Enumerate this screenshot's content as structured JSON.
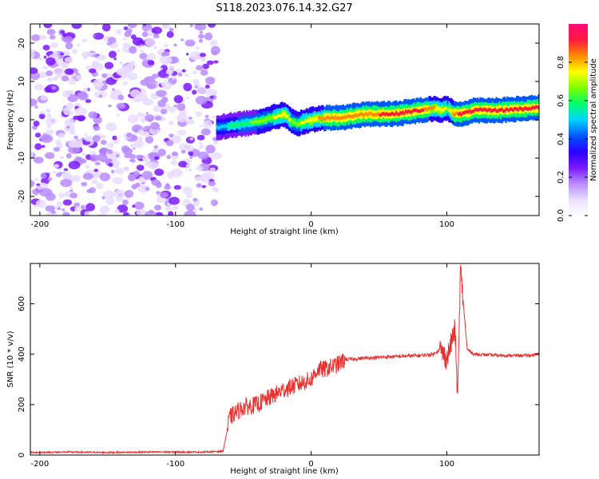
{
  "figure": {
    "title": "S118.2023.076.14.32.G27"
  },
  "colors": {
    "snr_line": "#e8312f",
    "spectrogram_palette": [
      "#ffffff",
      "#e9dcff",
      "#b98cff",
      "#7a18ff",
      "#2a00ff",
      "#0057ff",
      "#00d4ff",
      "#00ff6a",
      "#7dff00",
      "#ffff00",
      "#ff8a00",
      "#ff1a3c",
      "#ff0a78"
    ]
  },
  "chart_data": [
    {
      "type": "heatmap",
      "title": "S118.2023.076.14.32.G27",
      "xlabel": "Height of straight line (km)",
      "ylabel": "Frequency (Hz)",
      "xlim": [
        -207,
        168
      ],
      "ylim": [
        -25,
        25
      ],
      "x_ticks": [
        -200,
        -100,
        0,
        100
      ],
      "x_tick_labels": [
        "-200",
        "-100",
        "0",
        "100"
      ],
      "y_ticks": [
        -20,
        -10,
        0,
        10,
        20
      ],
      "y_tick_labels": [
        "-20",
        "-10",
        "0",
        "10",
        "20"
      ],
      "grid": false,
      "colorbar": {
        "label": "Normalized spectral amplitude",
        "range": [
          0,
          1
        ],
        "ticks": [
          0.0,
          0.2,
          0.4,
          0.6,
          0.8
        ],
        "tick_labels": [
          "0.0",
          "0.2",
          "0.4",
          "0.6",
          "0.8"
        ]
      },
      "noise_region": {
        "x_range": [
          -207,
          -70
        ],
        "amplitude": "0.1-0.3"
      },
      "signal_track": {
        "x": [
          -70,
          -60,
          -50,
          -40,
          -30,
          -20,
          -15,
          -10,
          0,
          10,
          20,
          40,
          60,
          70,
          80,
          90,
          95,
          100,
          105,
          110,
          120,
          140,
          160,
          168
        ],
        "frequency": [
          -2,
          -1.5,
          -1,
          -0.5,
          0.5,
          1.5,
          -0.5,
          -1,
          0,
          0.5,
          0.5,
          1.5,
          1.5,
          2,
          2.5,
          3,
          2.5,
          3,
          1.5,
          1.5,
          2.5,
          2.5,
          3,
          3.2
        ],
        "amplitude": [
          0.5,
          0.55,
          0.6,
          0.65,
          0.7,
          0.75,
          0.7,
          0.7,
          0.75,
          0.85,
          0.85,
          0.85,
          0.9,
          0.9,
          0.9,
          0.8,
          0.75,
          0.7,
          0.85,
          0.9,
          0.9,
          0.9,
          0.9,
          0.9
        ]
      }
    },
    {
      "type": "line",
      "xlabel": "Height of straight line (km)",
      "ylabel": "SNR (10 * v/v)",
      "xlim": [
        -207,
        168
      ],
      "ylim": [
        0,
        760
      ],
      "x_ticks": [
        -200,
        -100,
        0,
        100
      ],
      "x_tick_labels": [
        "-200",
        "-100",
        "0",
        "100"
      ],
      "y_ticks": [
        0,
        200,
        400,
        600
      ],
      "y_tick_labels": [
        "0",
        "200",
        "400",
        "600"
      ],
      "grid": false,
      "series": [
        {
          "x": [
            -207,
            -180,
            -150,
            -120,
            -100,
            -80,
            -65,
            -60,
            -55,
            -50,
            -40,
            -30,
            -20,
            -10,
            0,
            5,
            10,
            15,
            20,
            25,
            30,
            40,
            60,
            80,
            90,
            95,
            100,
            103,
            106,
            108,
            110,
            115,
            120,
            140,
            160,
            168
          ],
          "y": [
            10,
            12,
            10,
            12,
            12,
            12,
            15,
            150,
            170,
            190,
            200,
            230,
            260,
            280,
            300,
            340,
            340,
            350,
            360,
            380,
            380,
            385,
            390,
            395,
            400,
            420,
            380,
            440,
            500,
            220,
            740,
            420,
            400,
            395,
            395,
            400
          ]
        }
      ]
    }
  ]
}
